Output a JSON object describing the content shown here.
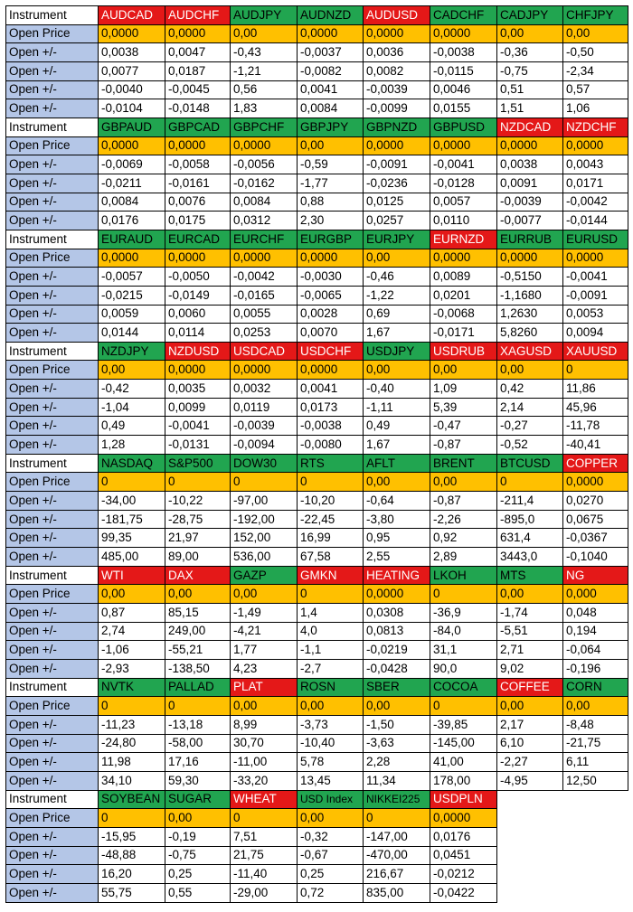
{
  "labels": {
    "instrument": "Instrument",
    "open_price": "Open Price",
    "change": "Open +/-"
  },
  "colors": {
    "green": "#21a550",
    "red": "#e41818",
    "open_price_bg": "#ffc000",
    "label_bg": "#b4c6e7"
  },
  "blocks": [
    {
      "instruments": [
        {
          "name": "AUDCAD",
          "color": "red",
          "open": "0,0000",
          "changes": [
            "0,0038",
            "0,0077",
            "-0,0040",
            "-0,0104"
          ]
        },
        {
          "name": "AUDCHF",
          "color": "red",
          "open": "0,0000",
          "changes": [
            "0,0047",
            "0,0187",
            "-0,0045",
            "-0,0148"
          ]
        },
        {
          "name": "AUDJPY",
          "color": "green",
          "open": "0,00",
          "changes": [
            "-0,43",
            "-1,21",
            "0,56",
            "1,83"
          ]
        },
        {
          "name": "AUDNZD",
          "color": "green",
          "open": "0,0000",
          "changes": [
            "-0,0037",
            "-0,0082",
            "0,0041",
            "0,0084"
          ]
        },
        {
          "name": "AUDUSD",
          "color": "red",
          "open": "0,0000",
          "changes": [
            "0,0036",
            "0,0082",
            "-0,0039",
            "-0,0099"
          ]
        },
        {
          "name": "CADCHF",
          "color": "green",
          "open": "0,0000",
          "changes": [
            "-0,0038",
            "-0,0115",
            "0,0046",
            "0,0155"
          ]
        },
        {
          "name": "CADJPY",
          "color": "green",
          "open": "0,00",
          "changes": [
            "-0,36",
            "-0,75",
            "0,51",
            "1,51"
          ]
        },
        {
          "name": "CHFJPY",
          "color": "green",
          "open": "0,00",
          "changes": [
            "-0,50",
            "-2,34",
            "0,57",
            "1,06"
          ]
        }
      ]
    },
    {
      "instruments": [
        {
          "name": "GBPAUD",
          "color": "green",
          "open": "0,0000",
          "changes": [
            "-0,0069",
            "-0,0211",
            "0,0084",
            "0,0176"
          ]
        },
        {
          "name": "GBPCAD",
          "color": "green",
          "open": "0,0000",
          "changes": [
            "-0,0058",
            "-0,0161",
            "0,0076",
            "0,0175"
          ]
        },
        {
          "name": "GBPCHF",
          "color": "green",
          "open": "0,0000",
          "changes": [
            "-0,0056",
            "-0,0162",
            "0,0084",
            "0,0312"
          ]
        },
        {
          "name": "GBPJPY",
          "color": "green",
          "open": "0,00",
          "changes": [
            "-0,59",
            "-1,77",
            "0,88",
            "2,30"
          ]
        },
        {
          "name": "GBPNZD",
          "color": "green",
          "open": "0,0000",
          "changes": [
            "-0,0091",
            "-0,0236",
            "0,0125",
            "0,0257"
          ]
        },
        {
          "name": "GBPUSD",
          "color": "green",
          "open": "0,0000",
          "changes": [
            "-0,0041",
            "-0,0128",
            "0,0057",
            "0,0110"
          ]
        },
        {
          "name": "NZDCAD",
          "color": "red",
          "open": "0,0000",
          "changes": [
            "0,0038",
            "0,0091",
            "-0,0039",
            "-0,0077"
          ]
        },
        {
          "name": "NZDCHF",
          "color": "red",
          "open": "0,0000",
          "changes": [
            "0,0043",
            "0,0171",
            "-0,0042",
            "-0,0144"
          ]
        }
      ]
    },
    {
      "instruments": [
        {
          "name": "EURAUD",
          "color": "green",
          "open": "0,0000",
          "changes": [
            "-0,0057",
            "-0,0215",
            "0,0059",
            "0,0144"
          ]
        },
        {
          "name": "EURCAD",
          "color": "green",
          "open": "0,0000",
          "changes": [
            "-0,0050",
            "-0,0149",
            "0,0060",
            "0,0114"
          ]
        },
        {
          "name": "EURCHF",
          "color": "green",
          "open": "0,0000",
          "changes": [
            "-0,0042",
            "-0,0165",
            "0,0055",
            "0,0253"
          ]
        },
        {
          "name": "EURGBP",
          "color": "green",
          "open": "0,0000",
          "changes": [
            "-0,0030",
            "-0,0065",
            "0,0028",
            "0,0070"
          ]
        },
        {
          "name": "EURJPY",
          "color": "green",
          "open": "0,00",
          "changes": [
            "-0,46",
            "-1,22",
            "0,69",
            "1,67"
          ]
        },
        {
          "name": "EURNZD",
          "color": "red",
          "open": "0,0000",
          "changes": [
            "0,0089",
            "0,0201",
            "-0,0068",
            "-0,0171"
          ]
        },
        {
          "name": "EURRUB",
          "color": "green",
          "open": "0,0000",
          "changes": [
            "-0,5150",
            "-1,1680",
            "1,2630",
            "5,8260"
          ]
        },
        {
          "name": "EURUSD",
          "color": "green",
          "open": "0,0000",
          "changes": [
            "-0,0041",
            "-0,0091",
            "0,0053",
            "0,0094"
          ]
        }
      ]
    },
    {
      "instruments": [
        {
          "name": "NZDJPY",
          "color": "green",
          "open": "0,00",
          "changes": [
            "-0,42",
            "-1,04",
            "0,49",
            "1,28"
          ]
        },
        {
          "name": "NZDUSD",
          "color": "red",
          "open": "0,0000",
          "changes": [
            "0,0035",
            "0,0099",
            "-0,0041",
            "-0,0131"
          ]
        },
        {
          "name": "USDCAD",
          "color": "red",
          "open": "0,0000",
          "changes": [
            "0,0032",
            "0,0119",
            "-0,0039",
            "-0,0094"
          ]
        },
        {
          "name": "USDCHF",
          "color": "red",
          "open": "0,0000",
          "changes": [
            "0,0041",
            "0,0173",
            "-0,0038",
            "-0,0080"
          ]
        },
        {
          "name": "USDJPY",
          "color": "green",
          "open": "0,00",
          "changes": [
            "-0,40",
            "-1,11",
            "0,49",
            "1,67"
          ]
        },
        {
          "name": "USDRUB",
          "color": "red",
          "open": "0,00",
          "changes": [
            "1,09",
            "5,39",
            "-0,47",
            "-0,87"
          ]
        },
        {
          "name": "XAGUSD",
          "color": "red",
          "open": "0,00",
          "changes": [
            "0,42",
            "2,14",
            "-0,27",
            "-0,52"
          ]
        },
        {
          "name": "XAUUSD",
          "color": "red",
          "open": "0",
          "changes": [
            "11,86",
            "45,96",
            "-11,78",
            "-40,41"
          ]
        }
      ]
    },
    {
      "instruments": [
        {
          "name": "NASDAQ",
          "color": "green",
          "open": "0",
          "changes": [
            "-34,00",
            "-181,75",
            "99,35",
            "485,00"
          ]
        },
        {
          "name": "S&P500",
          "color": "green",
          "open": "0",
          "changes": [
            "-10,22",
            "-28,75",
            "21,97",
            "89,00"
          ]
        },
        {
          "name": "DOW30",
          "color": "green",
          "open": "0",
          "changes": [
            "-97,00",
            "-192,00",
            "152,00",
            "536,00"
          ]
        },
        {
          "name": "RTS",
          "color": "green",
          "open": "0",
          "changes": [
            "-10,20",
            "-22,45",
            "16,99",
            "67,58"
          ]
        },
        {
          "name": "AFLT",
          "color": "green",
          "open": "0,00",
          "changes": [
            "-0,64",
            "-3,80",
            "0,95",
            "2,55"
          ]
        },
        {
          "name": "BRENT",
          "color": "green",
          "open": "0,00",
          "changes": [
            "-0,87",
            "-2,26",
            "0,92",
            "2,89"
          ]
        },
        {
          "name": "BTCUSD",
          "color": "green",
          "open": "0",
          "changes": [
            "-211,4",
            "-895,0",
            "631,4",
            "3443,0"
          ]
        },
        {
          "name": "COPPER",
          "color": "red",
          "open": "0,0000",
          "changes": [
            "0,0270",
            "0,0675",
            "-0,0367",
            "-0,1040"
          ]
        }
      ]
    },
    {
      "instruments": [
        {
          "name": "WTI",
          "color": "red",
          "open": "0,00",
          "changes": [
            "0,87",
            "2,74",
            "-1,06",
            "-2,93"
          ]
        },
        {
          "name": "DAX",
          "color": "red",
          "open": "0,00",
          "changes": [
            "85,15",
            "249,00",
            "-55,21",
            "-138,50"
          ]
        },
        {
          "name": "GAZP",
          "color": "green",
          "open": "0,00",
          "changes": [
            "-1,49",
            "-4,21",
            "1,77",
            "4,23"
          ]
        },
        {
          "name": "GMKN",
          "color": "red",
          "open": "0",
          "changes": [
            "1,4",
            "4,0",
            "-1,1",
            "-2,7"
          ]
        },
        {
          "name": "HEATING",
          "color": "red",
          "open": "0,0000",
          "changes": [
            "0,0308",
            "0,0813",
            "-0,0219",
            "-0,0428"
          ]
        },
        {
          "name": "LKOH",
          "color": "green",
          "open": "0",
          "changes": [
            "-36,9",
            "-84,0",
            "31,1",
            "90,0"
          ]
        },
        {
          "name": "MTS",
          "color": "green",
          "open": "0,00",
          "changes": [
            "-1,74",
            "-5,51",
            "2,71",
            "9,02"
          ]
        },
        {
          "name": "NG",
          "color": "red",
          "open": "0,000",
          "changes": [
            "0,048",
            "0,194",
            "-0,064",
            "-0,196"
          ]
        }
      ]
    },
    {
      "instruments": [
        {
          "name": "NVTK",
          "color": "green",
          "open": "0",
          "changes": [
            "-11,23",
            "-24,80",
            "11,98",
            "34,10"
          ]
        },
        {
          "name": "PALLAD",
          "color": "green",
          "open": "0",
          "changes": [
            "-13,18",
            "-58,00",
            "17,16",
            "59,30"
          ]
        },
        {
          "name": "PLAT",
          "color": "red",
          "open": "0,00",
          "changes": [
            "8,99",
            "30,70",
            "-11,00",
            "-33,20"
          ]
        },
        {
          "name": "ROSN",
          "color": "green",
          "open": "0,00",
          "changes": [
            "-3,73",
            "-10,40",
            "5,78",
            "13,45"
          ]
        },
        {
          "name": "SBER",
          "color": "green",
          "open": "0,00",
          "changes": [
            "-1,50",
            "-3,63",
            "2,28",
            "11,34"
          ]
        },
        {
          "name": "COCOA",
          "color": "green",
          "open": "0",
          "changes": [
            "-39,85",
            "-145,00",
            "41,00",
            "178,00"
          ]
        },
        {
          "name": "COFFEE",
          "color": "red",
          "open": "0,00",
          "changes": [
            "2,17",
            "6,10",
            "-2,27",
            "-4,95"
          ]
        },
        {
          "name": "CORN",
          "color": "green",
          "open": "0,00",
          "changes": [
            "-8,48",
            "-21,75",
            "6,11",
            "12,50"
          ]
        }
      ]
    },
    {
      "instruments": [
        {
          "name": "SOYBEAN",
          "color": "green",
          "open": "0",
          "changes": [
            "-15,95",
            "-48,88",
            "16,20",
            "55,75"
          ]
        },
        {
          "name": "SUGAR",
          "color": "green",
          "open": "0,00",
          "changes": [
            "-0,19",
            "-0,75",
            "0,25",
            "0,55"
          ]
        },
        {
          "name": "WHEAT",
          "color": "red",
          "open": "0",
          "changes": [
            "7,51",
            "21,75",
            "-11,40",
            "-29,00"
          ]
        },
        {
          "name": "USD Index",
          "color": "green",
          "open": "0,00",
          "changes": [
            "-0,32",
            "-0,67",
            "0,25",
            "0,72"
          ]
        },
        {
          "name": "NIKKEI225",
          "color": "green",
          "open": "0",
          "changes": [
            "-147,00",
            "-470,00",
            "216,67",
            "835,00"
          ]
        },
        {
          "name": "USDPLN",
          "color": "red",
          "open": "0,0000",
          "changes": [
            "0,0176",
            "0,0451",
            "-0,0212",
            "-0,0422"
          ]
        }
      ]
    }
  ]
}
